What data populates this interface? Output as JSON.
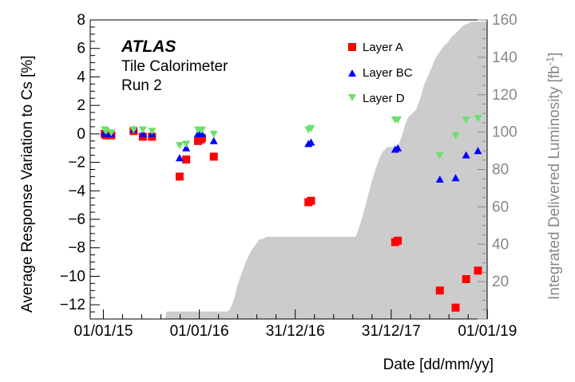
{
  "chart_data": {
    "type": "scatter",
    "annotations": {
      "brand": "ATLAS",
      "line1": "Tile Calorimeter",
      "line2": "Run 2"
    },
    "xlabel": "Date [dd/mm/yy]",
    "ylabel": "Average Response Variation to Cs [%]",
    "y2label": "Integrated Delivered Luminosity [fb",
    "y2label_sup": "-1",
    "y2label_close": "]",
    "ylim": [
      -13,
      8
    ],
    "y2lim": [
      0,
      160
    ],
    "xlim_days": [
      -50,
      1460
    ],
    "x_ticks": [
      {
        "day": 0,
        "label": "01/01/15"
      },
      {
        "day": 365,
        "label": "01/01/16"
      },
      {
        "day": 730,
        "label": "31/12/16"
      },
      {
        "day": 1095,
        "label": "31/12/17"
      },
      {
        "day": 1461,
        "label": "01/01/19"
      }
    ],
    "y_ticks": [
      {
        "v": 8,
        "label": "8"
      },
      {
        "v": 6,
        "label": "6"
      },
      {
        "v": 4,
        "label": "4"
      },
      {
        "v": 2,
        "label": "2"
      },
      {
        "v": 0,
        "label": "0"
      },
      {
        "v": -2,
        "label": "−2"
      },
      {
        "v": -4,
        "label": "−4"
      },
      {
        "v": -6,
        "label": "−6"
      },
      {
        "v": -8,
        "label": "−8"
      },
      {
        "v": -10,
        "label": "−10"
      },
      {
        "v": -12,
        "label": "−12"
      }
    ],
    "y2_ticks": [
      {
        "v": 20,
        "label": "20"
      },
      {
        "v": 40,
        "label": "40"
      },
      {
        "v": 60,
        "label": "60"
      },
      {
        "v": 80,
        "label": "80"
      },
      {
        "v": 100,
        "label": "100"
      },
      {
        "v": 120,
        "label": "120"
      },
      {
        "v": 140,
        "label": "140"
      },
      {
        "v": 160,
        "label": "160"
      }
    ],
    "luminosity": {
      "color": "#cccccc",
      "x": [
        -50,
        235,
        240,
        470,
        480,
        490,
        500,
        510,
        520,
        530,
        540,
        550,
        560,
        570,
        580,
        590,
        600,
        610,
        620,
        735,
        960,
        975,
        990,
        1005,
        1020,
        1035,
        1050,
        1065,
        1080,
        1120,
        1130,
        1140,
        1150,
        1160,
        1175,
        1190,
        1205,
        1220,
        1235,
        1250,
        1265,
        1280,
        1295,
        1310,
        1325,
        1340,
        1355,
        1370,
        1385,
        1400,
        1460
      ],
      "y": [
        0,
        0,
        4,
        4,
        5,
        8,
        12,
        18,
        22,
        26,
        30,
        33,
        36,
        38,
        40,
        42,
        43,
        43,
        44,
        44,
        44,
        50,
        57,
        65,
        73,
        80,
        86,
        90,
        92,
        92,
        96,
        100,
        105,
        108,
        110,
        112,
        118,
        125,
        130,
        135,
        140,
        143,
        146,
        148,
        151,
        153,
        155,
        157,
        158,
        159,
        159
      ]
    },
    "series": [
      {
        "name": "Layer A",
        "color": "#ff0000",
        "marker": "square",
        "x": [
          5,
          10,
          30,
          115,
          150,
          185,
          290,
          315,
          360,
          370,
          375,
          420,
          780,
          790,
          1110,
          1120,
          1280,
          1340,
          1380,
          1425
        ],
        "y": [
          0.0,
          -0.1,
          -0.1,
          0.2,
          -0.2,
          -0.2,
          -3.0,
          -1.8,
          -0.5,
          -0.4,
          -0.3,
          -1.6,
          -4.8,
          -4.7,
          -7.6,
          -7.5,
          -11.0,
          -12.2,
          -10.2,
          -9.6
        ]
      },
      {
        "name": "Layer BC",
        "color": "#0000ff",
        "marker": "triangle-up",
        "x": [
          5,
          10,
          30,
          115,
          150,
          185,
          290,
          315,
          360,
          370,
          375,
          420,
          780,
          790,
          1110,
          1120,
          1280,
          1340,
          1380,
          1425
        ],
        "y": [
          0.1,
          0.0,
          0.0,
          0.3,
          0.0,
          0.0,
          -1.7,
          -1.0,
          0.0,
          0.1,
          0.0,
          -0.5,
          -0.7,
          -0.6,
          -1.1,
          -1.0,
          -3.2,
          -3.1,
          -1.5,
          -1.2
        ]
      },
      {
        "name": "Layer D",
        "color": "#6ce06c",
        "marker": "triangle-down",
        "x": [
          5,
          10,
          30,
          115,
          150,
          185,
          290,
          315,
          360,
          370,
          375,
          420,
          780,
          790,
          1110,
          1120,
          1280,
          1340,
          1380,
          1425
        ],
        "y": [
          0.3,
          0.2,
          0.1,
          0.3,
          0.3,
          0.2,
          -0.8,
          -0.7,
          0.3,
          0.3,
          0.3,
          0.0,
          0.3,
          0.4,
          1.0,
          1.0,
          -1.5,
          -0.1,
          1.0,
          1.1
        ]
      }
    ]
  }
}
